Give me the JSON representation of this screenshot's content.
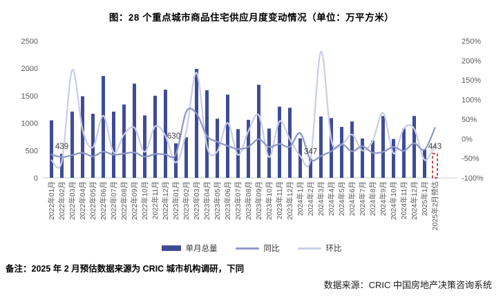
{
  "title": "图：28 个重点城市商品住宅供应月度变动情况（单位：万平方米）",
  "legend": {
    "bar_label": "单月总量",
    "yoy_label": "同比",
    "mom_label": "环比"
  },
  "notes": {
    "left": "备注：2025 年 2 月预估数据来源为 CRIC 城市机构调研，下同",
    "source": "数据来源：CRIC 中国房地产决策咨询系统"
  },
  "colors": {
    "bar": "#3E4C97",
    "yoy_line": "#8E99C9",
    "mom_line": "#C9CEE8",
    "estimate_outline": "#C0504D",
    "axis_text": "#595959",
    "label_text": "#404040",
    "axis_line": "#C9C9C9"
  },
  "chart_data": {
    "type": "combo bar+line",
    "title": "图：28 个重点城市商品住宅供应月度变动情况（单位：万平方米）",
    "categories": [
      "2022年01月",
      "2022年02月",
      "2022年03月",
      "2022年04月",
      "2022年05月",
      "2022年06月",
      "2022年07月",
      "2022年08月",
      "2022年09月",
      "2022年10月",
      "2022年11月",
      "2022年12月",
      "2023年01月",
      "2023年02月",
      "2023年03月",
      "2023年04月",
      "2023年05月",
      "2023年06月",
      "2023年07月",
      "2023年08月",
      "2023年09月",
      "2023年10月",
      "2023年11月",
      "2023年12月",
      "2024年1月",
      "2024年2月",
      "2024年3月",
      "2024年4月",
      "2024年5月",
      "2024年6月",
      "2024年7月",
      "2024年8月",
      "2024年9月",
      "2024年10月",
      "2024年11月",
      "2024年12月",
      "2025年1月",
      "2025年2月预估"
    ],
    "series": [
      {
        "name": "单月总量",
        "type": "bar",
        "axis": "left",
        "unit": "万平方米",
        "values": [
          1050,
          439,
          1210,
          1490,
          1170,
          1860,
          1210,
          1340,
          1720,
          1140,
          1500,
          1610,
          630,
          740,
          1990,
          1600,
          1080,
          1520,
          890,
          1060,
          1700,
          900,
          1300,
          1280,
          720,
          347,
          1120,
          1090,
          930,
          1030,
          720,
          680,
          1130,
          710,
          900,
          1130,
          520,
          443
        ],
        "last_point_is_estimate": true
      },
      {
        "name": "同比",
        "type": "line",
        "axis": "right",
        "unit": "%",
        "values": [
          -40,
          -47,
          -42,
          -36,
          -45,
          -33,
          -41,
          -38,
          -35,
          -46,
          -39,
          -40,
          -40,
          68.6,
          64.5,
          7.4,
          -7.7,
          -18.3,
          -26.4,
          -20.9,
          -1.2,
          -21.1,
          -13.3,
          -20.5,
          14.3,
          -53.1,
          -43.7,
          -31.9,
          -13.9,
          -32.2,
          -19.1,
          -35.8,
          -33.5,
          -21.1,
          -30.8,
          -11.7,
          -27.8,
          27.7
        ]
      },
      {
        "name": "环比",
        "type": "line",
        "axis": "right",
        "unit": "%",
        "values": [
          -55,
          -58.2,
          175.6,
          23.1,
          -21.5,
          59,
          -34.9,
          10.7,
          28.4,
          -33.7,
          31.6,
          7.3,
          -60.9,
          17.5,
          168.9,
          -19.6,
          -32.5,
          40.7,
          -41.4,
          19.1,
          60.4,
          -47.1,
          44.4,
          -1.5,
          -43.8,
          -51.8,
          222.8,
          -2.7,
          -14.7,
          10.8,
          -30.1,
          -5.6,
          66.2,
          -37.2,
          26.8,
          25.6,
          -54,
          -14.8
        ]
      }
    ],
    "data_labels": [
      {
        "index": 1,
        "text": "439"
      },
      {
        "index": 12,
        "text": "630"
      },
      {
        "index": 25,
        "text": "347"
      },
      {
        "index": 37,
        "text": "443"
      }
    ],
    "y_left": {
      "min": 0,
      "max": 2500,
      "step": 500,
      "ticks": [
        "0",
        "500",
        "1000",
        "1500",
        "2000",
        "2500"
      ]
    },
    "y_right": {
      "min": -100,
      "max": 250,
      "step": 50,
      "ticks": [
        "-100%",
        "-50%",
        "0%",
        "50%",
        "100%",
        "150%",
        "200%",
        "250%"
      ]
    },
    "grid": false,
    "legend_position": "bottom",
    "estimate_bar_style": "red dashed outline, no fill"
  }
}
